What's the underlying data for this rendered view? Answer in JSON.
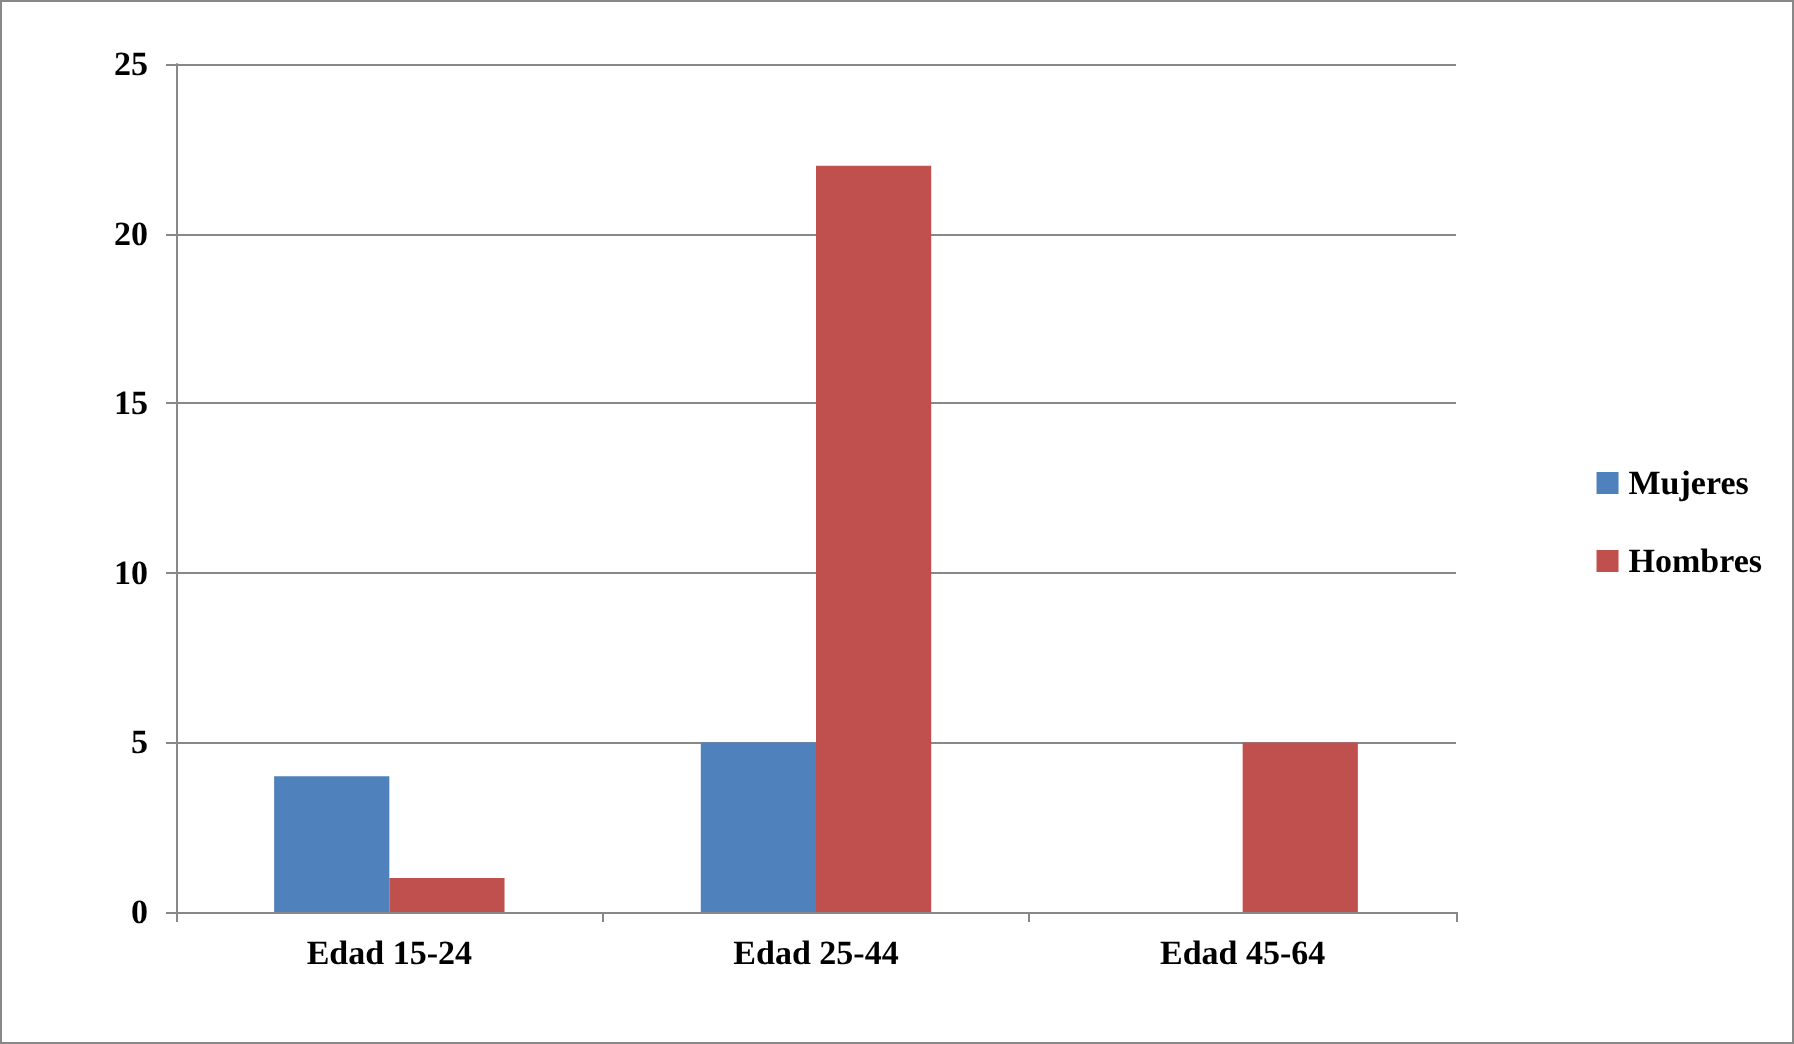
{
  "chart_data": {
    "type": "bar",
    "categories": [
      "Edad 15-24",
      "Edad 25-44",
      "Edad 45-64"
    ],
    "series": [
      {
        "name": "Mujeres",
        "color": "#4f81bd",
        "values": [
          4,
          5,
          0
        ]
      },
      {
        "name": "Hombres",
        "color": "#c0504d",
        "values": [
          1,
          22,
          5
        ]
      }
    ],
    "ylim": [
      0,
      25
    ],
    "yticks": [
      0,
      5,
      10,
      15,
      20,
      25
    ],
    "grid": "y",
    "legend": "right"
  }
}
